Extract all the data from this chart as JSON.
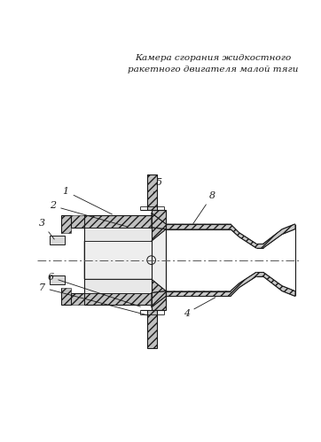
{
  "title_line1": "Камера сгорания жидкостного",
  "title_line2": "ракетного двигателя малой тяги",
  "bg_color": "#ffffff",
  "line_color": "#1a1a1a",
  "hatch_color": "#555555"
}
